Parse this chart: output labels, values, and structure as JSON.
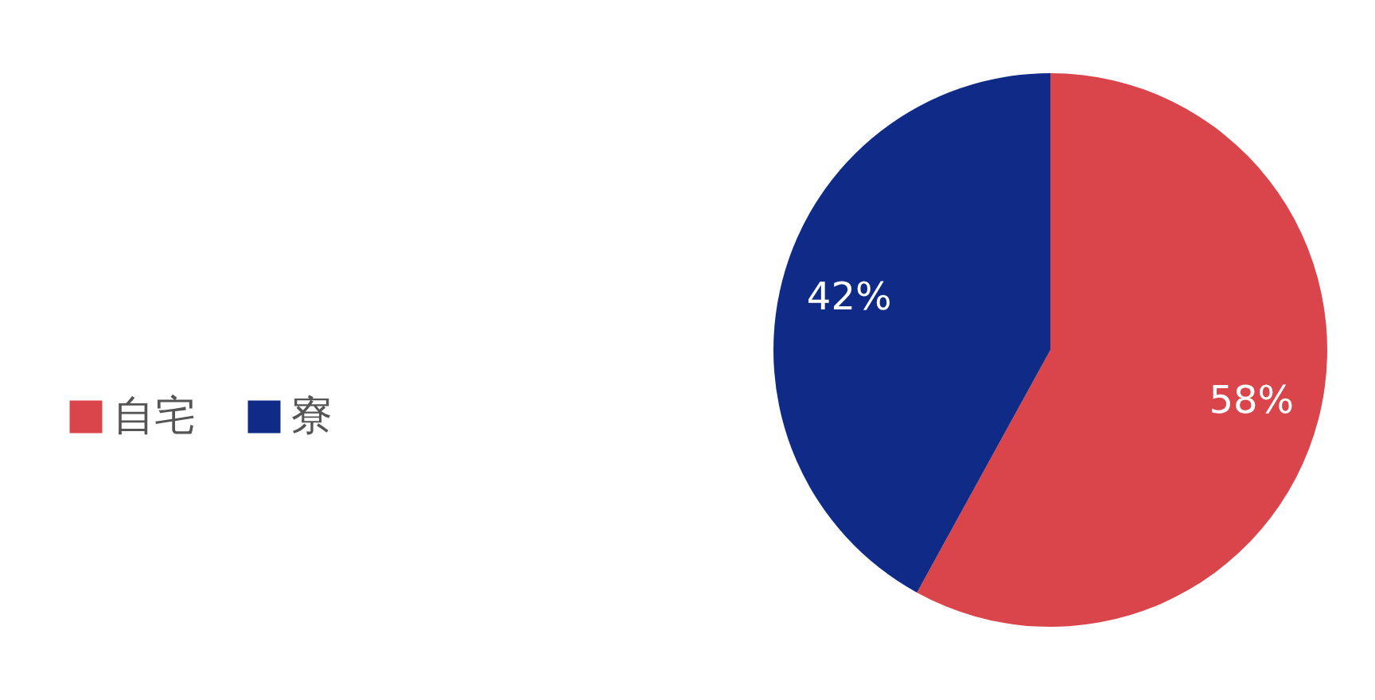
{
  "chart_data": {
    "type": "pie",
    "categories": [
      "自宅",
      "寮"
    ],
    "values": [
      58,
      42
    ],
    "colors": [
      "#d9454a",
      "#0f2a87"
    ],
    "value_labels": [
      "58%",
      "42%"
    ],
    "legend": "left"
  }
}
